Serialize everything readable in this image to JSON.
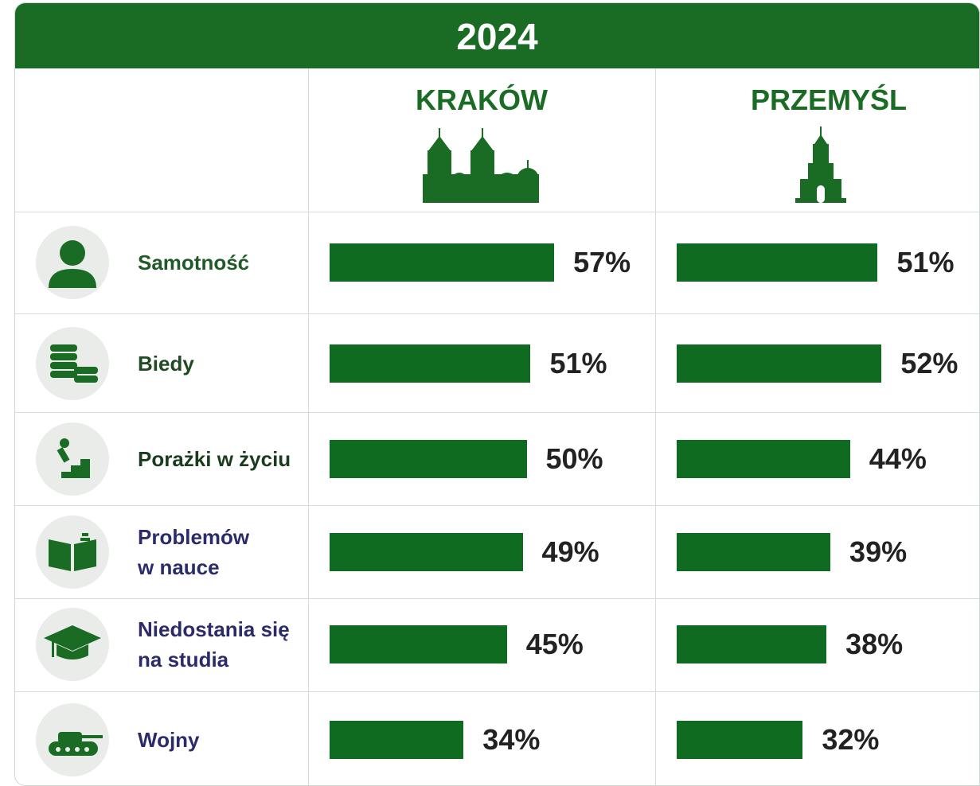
{
  "chart_data": {
    "type": "bar",
    "orientation": "horizontal",
    "title": "2024",
    "categories": [
      "Samotność",
      "Biedy",
      "Porażki w życiu",
      "Problemów\nw nauce",
      "Niedostania się\nna studia",
      "Wojny"
    ],
    "series": [
      {
        "name": "KRAKÓW",
        "color": "#0e6b1f",
        "values": [
          57,
          51,
          50,
          49,
          45,
          34
        ],
        "value_labels": [
          "57%",
          "51%",
          "50%",
          "49%",
          "45%",
          "34%"
        ]
      },
      {
        "name": "PRZEMYŚL",
        "color": "#0e6b1f",
        "values": [
          51,
          52,
          44,
          39,
          38,
          32
        ],
        "value_labels": [
          "51%",
          "52%",
          "44%",
          "39%",
          "38%",
          "32%"
        ]
      }
    ]
  }
}
